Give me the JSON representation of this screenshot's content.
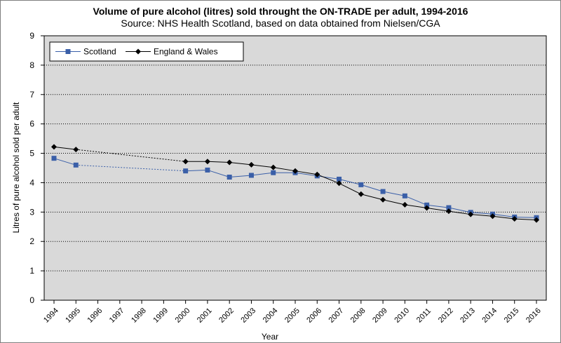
{
  "chart_data": {
    "type": "line",
    "title": "Volume of pure alcohol (litres) sold throught the ON-TRADE per adult, 1994-2016",
    "subtitle": "Source: NHS Health Scotland, based on data obtained from Nielsen/CGA",
    "xlabel": "Year",
    "ylabel": "Litres of pure alcohol sold per adult",
    "ylim": [
      0,
      9
    ],
    "yticks": [
      0,
      1,
      2,
      3,
      4,
      5,
      6,
      7,
      8,
      9
    ],
    "categories": [
      "1994",
      "1995",
      "1996",
      "1997",
      "1998",
      "1999",
      "2000",
      "2001",
      "2002",
      "2003",
      "2004",
      "2005",
      "2006",
      "2007",
      "2008",
      "2009",
      "2010",
      "2011",
      "2012",
      "2013",
      "2014",
      "2015",
      "2016"
    ],
    "grid": "horizontal dotted",
    "legend_position": "top-left",
    "series": [
      {
        "name": "Scotland",
        "color": "#3a5fa8",
        "marker": "square",
        "values": [
          4.83,
          4.6,
          null,
          null,
          null,
          null,
          4.4,
          4.43,
          4.19,
          4.25,
          4.34,
          4.34,
          4.23,
          4.12,
          3.93,
          3.7,
          3.55,
          3.24,
          3.15,
          2.99,
          2.93,
          2.83,
          2.81
        ]
      },
      {
        "name": "England & Wales",
        "color": "#000000",
        "marker": "diamond",
        "values": [
          5.22,
          5.13,
          null,
          null,
          null,
          null,
          4.72,
          4.72,
          4.69,
          4.61,
          4.52,
          4.4,
          4.28,
          3.98,
          3.61,
          3.42,
          3.25,
          3.14,
          3.03,
          2.92,
          2.86,
          2.77,
          2.73
        ]
      }
    ]
  }
}
